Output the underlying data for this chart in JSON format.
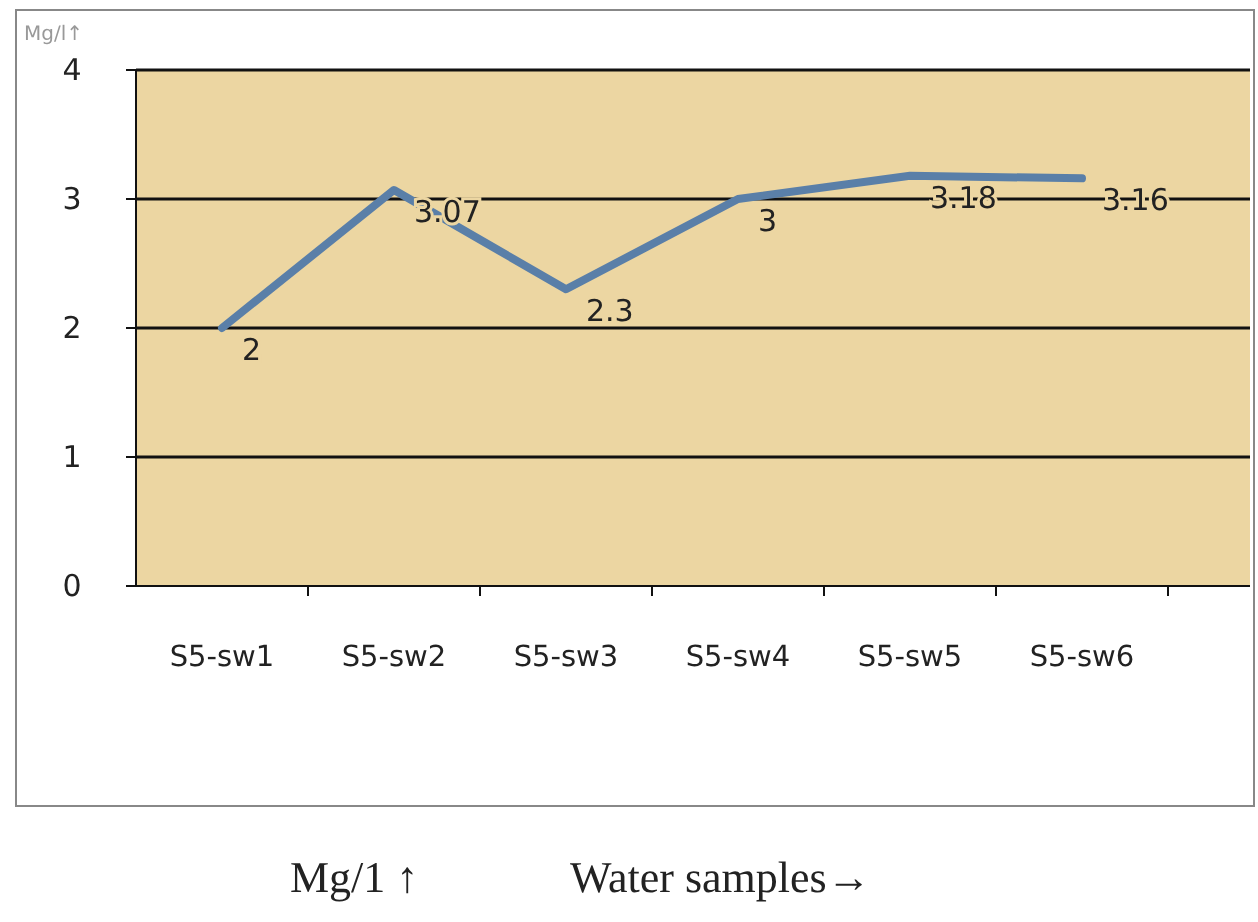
{
  "chart_data": {
    "type": "line",
    "xlabel": "Water samples→",
    "ylabel": "Mg/l↑",
    "annotations": [
      "Mg/1 ↑"
    ],
    "categories": [
      "S5-sw1",
      "S5-sw2",
      "S5-sw3",
      "S5-sw4",
      "S5-sw5",
      "S5-sw6"
    ],
    "series": [
      {
        "color": "#5a7fa8",
        "values": [
          2,
          3.07,
          2.3,
          3,
          3.18,
          3.16
        ]
      }
    ],
    "ylim": [
      0,
      4
    ],
    "yticks": [
      0,
      1,
      2,
      3,
      4
    ],
    "grid": "y",
    "data_labels": true,
    "marker": "none",
    "line_style": "solid"
  }
}
